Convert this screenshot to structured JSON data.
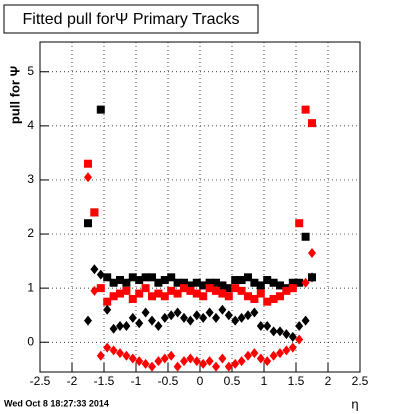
{
  "chart_data": {
    "type": "scatter",
    "title": "Fitted pull forΨ   Primary Tracks",
    "ylabel": "pull for Ψ",
    "xlabel": "η",
    "timestamp": "Wed Oct  8 18:27:33 2014",
    "xlim": [
      -2.5,
      2.5
    ],
    "ylim": [
      -0.55,
      5.55
    ],
    "xticks": [
      -2.5,
      -2,
      -1.5,
      -1,
      -0.5,
      0,
      0.5,
      1,
      1.5,
      2,
      2.5
    ],
    "yticks": [
      0,
      1,
      2,
      3,
      4,
      5
    ],
    "grid": true,
    "x": [
      -1.75,
      -1.65,
      -1.55,
      -1.45,
      -1.35,
      -1.25,
      -1.15,
      -1.05,
      -0.95,
      -0.85,
      -0.75,
      -0.65,
      -0.55,
      -0.45,
      -0.35,
      -0.25,
      -0.15,
      -0.05,
      0.05,
      0.15,
      0.25,
      0.35,
      0.45,
      0.55,
      0.65,
      0.75,
      0.85,
      0.95,
      1.05,
      1.15,
      1.25,
      1.35,
      1.45,
      1.55,
      1.65,
      1.75
    ],
    "series": [
      {
        "color": "#000000",
        "marker": "square",
        "values": [
          2.2,
          2.4,
          4.3,
          1.2,
          1.1,
          1.15,
          1.1,
          1.2,
          1.15,
          1.2,
          1.2,
          1.1,
          1.15,
          1.2,
          1.1,
          1.1,
          1.05,
          1.1,
          1.05,
          1.1,
          1.1,
          1.05,
          1.0,
          1.15,
          1.15,
          1.2,
          1.1,
          1.05,
          1.15,
          1.1,
          1.05,
          1.0,
          1.1,
          1.1,
          1.95,
          1.2
        ]
      },
      {
        "color": "#ff0000",
        "marker": "square",
        "values": [
          3.3,
          2.4,
          1.0,
          0.75,
          0.85,
          0.9,
          0.95,
          0.8,
          0.9,
          1.0,
          0.85,
          0.9,
          0.85,
          0.95,
          0.9,
          1.0,
          0.95,
          0.9,
          0.85,
          1.0,
          0.95,
          0.9,
          0.85,
          1.0,
          0.95,
          0.85,
          0.8,
          0.9,
          0.75,
          0.8,
          0.85,
          0.95,
          1.0,
          2.2,
          4.3,
          4.05
        ]
      },
      {
        "color": "#000000",
        "marker": "diamond",
        "values": [
          0.4,
          1.35,
          1.25,
          0.6,
          0.25,
          0.3,
          0.3,
          0.45,
          0.35,
          0.55,
          0.4,
          0.3,
          0.45,
          0.5,
          0.55,
          0.45,
          0.4,
          0.5,
          0.45,
          0.55,
          0.45,
          0.6,
          0.5,
          0.4,
          0.45,
          0.5,
          0.55,
          0.3,
          0.3,
          0.2,
          0.2,
          0.15,
          0.1,
          0.3,
          0.4,
          1.2
        ]
      },
      {
        "color": "#ff0000",
        "marker": "diamond",
        "values": [
          3.05,
          0.95,
          -0.25,
          -0.1,
          -0.15,
          -0.2,
          -0.25,
          -0.3,
          -0.35,
          -0.4,
          -0.45,
          -0.35,
          -0.3,
          -0.25,
          -0.45,
          -0.35,
          -0.3,
          -0.35,
          -0.4,
          -0.35,
          -0.45,
          -0.3,
          -0.45,
          -0.4,
          -0.35,
          -0.25,
          -0.2,
          -0.3,
          -0.35,
          -0.25,
          -0.2,
          -0.15,
          -0.1,
          0.05,
          1.1,
          1.65
        ]
      }
    ]
  }
}
